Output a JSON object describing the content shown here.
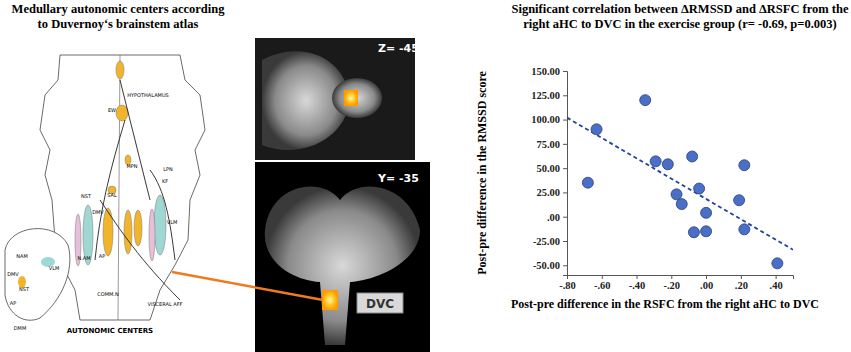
{
  "chart_data": {
    "type": "scatter",
    "title": [
      "Significant correlation between ΔRMSSD and ΔRSFC from the",
      "right aHC to DVC in the exercise group (r= -0.69, p=0.003)"
    ],
    "x_label": "Post-pre difference in the RSFC from the right aHC to DVC",
    "y_label": "Post-pre difference in the RMSSD score",
    "x": [
      -0.68,
      -0.63,
      -0.35,
      -0.29,
      -0.22,
      -0.17,
      -0.14,
      -0.08,
      -0.04,
      -0.07,
      0.0,
      0.0,
      0.19,
      0.22,
      0.22,
      0.41
    ],
    "values": [
      35,
      90,
      120,
      57,
      54,
      23,
      13,
      62,
      29,
      -16,
      4,
      -15,
      17,
      53,
      -13,
      -48
    ],
    "color": "#4a6fc7",
    "marker": "circle",
    "fit_line": {
      "x": [
        -0.8,
        0.5
      ],
      "values": [
        102,
        -34
      ],
      "color": "#22439c",
      "line_style": "dashed"
    },
    "xlim": [
      -0.8,
      0.5
    ],
    "ylim": [
      -60,
      150
    ],
    "xticks": [
      {
        "value": -0.8,
        "label": "-.80"
      },
      {
        "value": -0.6,
        "label": "-.60"
      },
      {
        "value": -0.4,
        "label": "-.40"
      },
      {
        "value": -0.2,
        "label": "-.20"
      },
      {
        "value": 0,
        "label": ".00"
      },
      {
        "value": 0.2,
        "label": ".20"
      },
      {
        "value": 0.4,
        "label": ".40"
      }
    ],
    "yticks": [
      {
        "value": 150,
        "label": "150.00"
      },
      {
        "value": 125,
        "label": "125.00"
      },
      {
        "value": 100,
        "label": "100.00"
      },
      {
        "value": 75,
        "label": "75.00"
      },
      {
        "value": 50,
        "label": "50.00"
      },
      {
        "value": 25,
        "label": "25.00"
      },
      {
        "value": 0,
        "label": ".00"
      },
      {
        "value": -25,
        "label": "-25.00"
      },
      {
        "value": -50,
        "label": "-50.00"
      }
    ],
    "grid": false
  },
  "figure": {
    "left_title": [
      "Medullary autonomic centers according",
      "to Duvernoy‘s brainstem atlas"
    ],
    "atlas_labels": [
      "HYPOTHALAMUS",
      "EW",
      "MPN",
      "LPN",
      "KF",
      "SAL",
      "NST",
      "DMV",
      "VLM",
      "AP",
      "COMM.N",
      "N.AM",
      "VISCERAL AFF",
      "AUTONOMIC CENTERS"
    ],
    "inset_labels": [
      "NAM",
      "VLM",
      "DMV",
      "NST",
      "AP",
      "DMM"
    ],
    "slice_labels": [
      "Z= -45",
      "Y= -35"
    ],
    "region_label": "DVC"
  }
}
